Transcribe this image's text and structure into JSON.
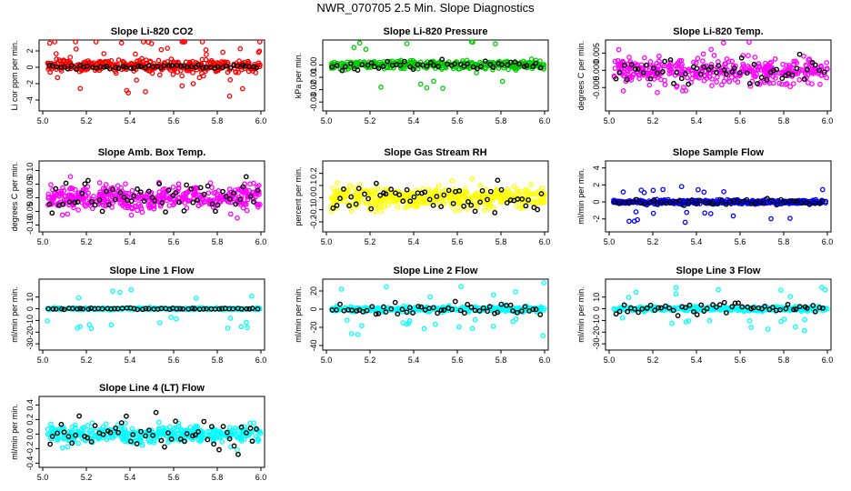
{
  "figure": {
    "title": "NWR_070705  2.5 Min. Slope Diagnostics"
  },
  "colors": {
    "highlight": "#000000",
    "axis": "#000000",
    "background": "#ffffff"
  },
  "chart_data": [
    {
      "id": "co2",
      "type": "scatter",
      "title": "Slope Li-820 CO2",
      "ylabel": "Li cor ppm per min.",
      "xlim": [
        5.0,
        6.0
      ],
      "ylim": [
        -5,
        3
      ],
      "xticks": [
        "5.0",
        "5.2",
        "5.4",
        "5.6",
        "5.8",
        "6.0"
      ],
      "yticks": [
        2,
        0,
        -2,
        -4
      ],
      "ytick_labels": [
        "2",
        "0",
        "-2",
        "-4"
      ],
      "color": "#ff0000",
      "n_points": 420,
      "noise": 0.8,
      "spike": {
        "prob": 0.07,
        "amp": 2.2
      },
      "center": 0.15,
      "highlight_n": 55,
      "highlight_noise": 0.12
    },
    {
      "id": "pressure",
      "type": "scatter",
      "title": "Slope Li-820 Pressure",
      "ylabel": "kPa per min.",
      "xlim": [
        5.0,
        6.0
      ],
      "ylim": [
        -0.035,
        0.018
      ],
      "xticks": [
        "5.0",
        "5.2",
        "5.4",
        "5.6",
        "5.8",
        "6.0"
      ],
      "yticks": [
        0.0,
        -0.01,
        -0.02,
        -0.03
      ],
      "ytick_labels": [
        "0.00",
        "-0.01",
        "-0.02",
        "-0.03"
      ],
      "color": "#00cc00",
      "n_points": 380,
      "noise": 0.0035,
      "spike": {
        "prob": 0.04,
        "amp": 0.012
      },
      "center": 0.0,
      "highlight_n": 50,
      "highlight_noise": 0.002
    },
    {
      "id": "temp",
      "type": "scatter",
      "title": "Slope Li-820 Temp.",
      "ylabel": "degrees C per min.",
      "xlim": [
        5.0,
        6.0
      ],
      "ylim": [
        -0.011,
        0.008
      ],
      "xticks": [
        "5.0",
        "5.2",
        "5.4",
        "5.6",
        "5.8",
        "6.0"
      ],
      "yticks": [
        0.005,
        0.0,
        -0.005
      ],
      "ytick_labels": [
        "0.005",
        "0.000",
        "-0.005"
      ],
      "color": "#ff00ff",
      "n_points": 380,
      "noise": 0.0035,
      "spike": {
        "prob": 0.05,
        "amp": 0.004
      },
      "center": 0.0,
      "highlight_n": 55,
      "highlight_noise": 0.0018
    },
    {
      "id": "boxtemp",
      "type": "scatter",
      "title": "Slope Amb. Box Temp.",
      "ylabel": "degrees C per min.",
      "xlim": [
        5.0,
        6.0
      ],
      "ylim": [
        -0.115,
        0.125
      ],
      "xticks": [
        "5.0",
        "5.2",
        "5.4",
        "5.6",
        "5.8",
        "6.0"
      ],
      "yticks": [
        0.1,
        0.05,
        0.0,
        -0.05,
        -0.1
      ],
      "ytick_labels": [
        "0.10",
        "0.05",
        "0.00",
        "-0.05",
        "-0.10"
      ],
      "color": "#ff00ff",
      "n_points": 450,
      "noise": 0.045,
      "spike": {
        "prob": 0.03,
        "amp": 0.04
      },
      "center": 0.0,
      "highlight_n": 60,
      "highlight_noise": 0.03
    },
    {
      "id": "rh",
      "type": "scatter",
      "title": "Slope Gas Stream RH",
      "ylabel": "percent per min.",
      "xlim": [
        5.0,
        6.0
      ],
      "ylim": [
        -0.26,
        0.28
      ],
      "xticks": [
        "5.0",
        "5.2",
        "5.4",
        "5.6",
        "5.8",
        "6.0"
      ],
      "yticks": [
        0.2,
        0.1,
        0.0,
        -0.1,
        -0.2
      ],
      "ytick_labels": [
        "0.2",
        "0.1",
        "0.0",
        "-0.1",
        "-0.2"
      ],
      "color": "#ffff00",
      "n_points": 450,
      "noise": 0.09,
      "spike": {
        "prob": 0.03,
        "amp": 0.06
      },
      "center": 0.0,
      "highlight_n": 55,
      "highlight_noise": 0.06
    },
    {
      "id": "sampleflow",
      "type": "scatter",
      "title": "Slope Sample Flow",
      "ylabel": "ml/min per min.",
      "xlim": [
        5.0,
        6.0
      ],
      "ylim": [
        -3.2,
        4.5
      ],
      "xticks": [
        "5.0",
        "5.2",
        "5.4",
        "5.6",
        "5.8",
        "6.0"
      ],
      "yticks": [
        4,
        2,
        0,
        -2
      ],
      "ytick_labels": [
        "4",
        "2",
        "0",
        "-2"
      ],
      "color": "#0000ff",
      "n_points": 420,
      "noise": 0.25,
      "spike": {
        "prob": 0.06,
        "amp": 1.4
      },
      "center": 0.0,
      "highlight_n": 50,
      "highlight_noise": 0.15
    },
    {
      "id": "line1",
      "type": "scatter",
      "title": "Slope Line 1 Flow",
      "ylabel": "ml/min per min.",
      "xlim": [
        5.0,
        6.0
      ],
      "ylim": [
        -33,
        23
      ],
      "xticks": [
        "5.0",
        "5.2",
        "5.4",
        "5.6",
        "5.8",
        "6.0"
      ],
      "yticks": [
        10,
        0,
        -10,
        -20,
        -30
      ],
      "ytick_labels": [
        "10",
        "0",
        "-10",
        "-20",
        "-30"
      ],
      "color": "#00ffff",
      "n_points": 380,
      "noise": 0.9,
      "spike": {
        "prob": 0.04,
        "amp": 11
      },
      "center": 0.0,
      "highlight_n": 55,
      "highlight_noise": 0.3
    },
    {
      "id": "line2",
      "type": "scatter",
      "title": "Slope Line 2 Flow",
      "ylabel": "ml/min per min.",
      "xlim": [
        5.0,
        6.0
      ],
      "ylim": [
        -42,
        30
      ],
      "xticks": [
        "5.0",
        "5.2",
        "5.4",
        "5.6",
        "5.8",
        "6.0"
      ],
      "yticks": [
        20,
        0,
        -20,
        -40
      ],
      "ytick_labels": [
        "20",
        "0",
        "-20",
        "-40"
      ],
      "color": "#00ffff",
      "n_points": 380,
      "noise": 3,
      "spike": {
        "prob": 0.04,
        "amp": 18
      },
      "center": 0.0,
      "highlight_n": 55,
      "highlight_noise": 3
    },
    {
      "id": "line3",
      "type": "scatter",
      "title": "Slope Line 3 Flow",
      "ylabel": "ml/min per min.",
      "xlim": [
        5.0,
        6.0
      ],
      "ylim": [
        -33,
        23
      ],
      "xticks": [
        "5.0",
        "5.2",
        "5.4",
        "5.6",
        "5.8",
        "6.0"
      ],
      "yticks": [
        10,
        0,
        -10,
        -20,
        -30
      ],
      "ytick_labels": [
        "10",
        "0",
        "-10",
        "-20",
        "-30"
      ],
      "color": "#00ffff",
      "n_points": 400,
      "noise": 2,
      "spike": {
        "prob": 0.07,
        "amp": 12
      },
      "center": 0.0,
      "highlight_n": 55,
      "highlight_noise": 2.5
    },
    {
      "id": "line4",
      "type": "scatter",
      "title": "Slope Line 4 (LT) Flow",
      "ylabel": "ml/min per min.",
      "xlim": [
        5.0,
        6.0
      ],
      "ylim": [
        -0.42,
        0.48
      ],
      "xticks": [
        "5.0",
        "5.2",
        "5.4",
        "5.6",
        "5.8",
        "6.0"
      ],
      "yticks": [
        0.4,
        0.2,
        0.0,
        -0.2,
        -0.4
      ],
      "ytick_labels": [
        "0.4",
        "0.2",
        "0.0",
        "-0.2",
        "-0.4"
      ],
      "color": "#00ffff",
      "n_points": 420,
      "noise": 0.13,
      "spike": {
        "prob": 0.03,
        "amp": 0.12
      },
      "center": 0.0,
      "highlight_n": 55,
      "highlight_noise": 0.1
    }
  ]
}
